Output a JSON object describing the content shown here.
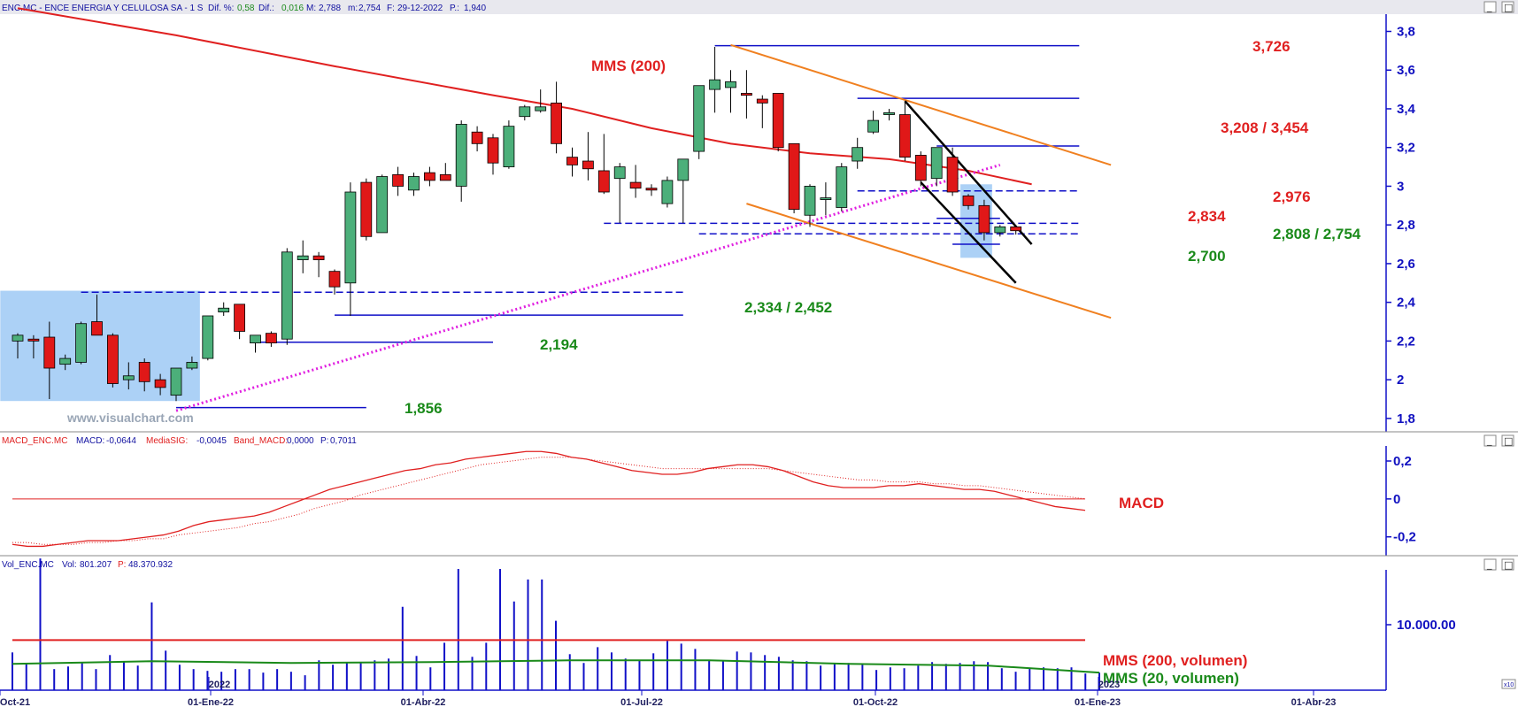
{
  "panels": {
    "price_header": {
      "text": "ENC.MC - ENCE ENERGIA Y CELULOSA SA - 1 S Dif. %: 0,58 Dif.: 0,016 M: 2,788 m: 2,754 F: 29-12-2022 P.: 1,940",
      "prefix": "ENC.MC - ENCE ENERGIA Y CELULOSA SA -  1 S",
      "dif_pct_label": "Dif. %:",
      "dif_pct": "0,58",
      "dif_label": "Dif.:",
      "dif": "0,016",
      "max_label": "M:",
      "max": "2,788",
      "min_label": "m:",
      "min": "2,754",
      "date_label": "F:",
      "date": "29-12-2022",
      "p_label": "P.:",
      "p": "1,940"
    },
    "macd_header": {
      "prefix": "MACD_ENC.MC",
      "macd_label": "MACD:",
      "macd": "-0,0644",
      "sig_label": "MediaSIG:",
      "sig": "-0,0045",
      "band_label": "Band_MACD:",
      "band": "0,0000",
      "p_label": "P:",
      "p": "0,7011"
    },
    "vol_header": {
      "prefix": "Vol_ENC.MC",
      "vol_label": "Vol:",
      "vol": "801.207",
      "p_label": "P:",
      "p": "48.370.932"
    }
  },
  "watermark": "www.visualchart.com",
  "window_buttons": {
    "minimize": "_",
    "maximize": "□"
  },
  "scale_corner": "x10",
  "colors": {
    "up": "#4caf7a",
    "down": "#e01818",
    "mms200": "#e02020",
    "mms20vol": "#1a8a1a",
    "blue": "#1010c8",
    "orange": "#f08020",
    "magenta": "#e020e0",
    "green_text": "#1a8a1a",
    "red_text": "#e02020"
  },
  "chart_data": [
    {
      "type": "candlestick",
      "title": "ENC.MC - ENCE ENERGIA Y CELULOSA SA",
      "timeframe": "1 S",
      "y_axis": {
        "ticks": [
          "1,8",
          "2",
          "2,2",
          "2,4",
          "2,6",
          "2,8",
          "3",
          "3,2",
          "3,4",
          "3,6",
          "3,8"
        ],
        "ylim": [
          1.74,
          3.88
        ]
      },
      "x_axis": {
        "ticks": [
          "01-Oct-21",
          "01-Ene-22",
          "01-Abr-22",
          "01-Jul-22",
          "01-Oct-22",
          "01-Ene-23",
          "01-Abr-23"
        ],
        "year_markers": [
          "2022",
          "2023"
        ]
      },
      "candles": [
        {
          "w": 0,
          "o": 2.2,
          "h": 2.24,
          "l": 2.11,
          "c": 2.23
        },
        {
          "w": 1,
          "o": 2.21,
          "h": 2.23,
          "l": 2.11,
          "c": 2.2
        },
        {
          "w": 2,
          "o": 2.22,
          "h": 2.3,
          "l": 1.9,
          "c": 2.06
        },
        {
          "w": 3,
          "o": 2.08,
          "h": 2.13,
          "l": 2.05,
          "c": 2.11
        },
        {
          "w": 4,
          "o": 2.09,
          "h": 2.3,
          "l": 2.08,
          "c": 2.29
        },
        {
          "w": 5,
          "o": 2.3,
          "h": 2.44,
          "l": 2.23,
          "c": 2.23
        },
        {
          "w": 6,
          "o": 2.23,
          "h": 2.24,
          "l": 1.96,
          "c": 1.98
        },
        {
          "w": 7,
          "o": 2.0,
          "h": 2.09,
          "l": 1.95,
          "c": 2.02
        },
        {
          "w": 8,
          "o": 2.09,
          "h": 2.11,
          "l": 1.94,
          "c": 1.99
        },
        {
          "w": 9,
          "o": 2.0,
          "h": 2.03,
          "l": 1.92,
          "c": 1.96
        },
        {
          "w": 10,
          "o": 1.92,
          "h": 2.06,
          "l": 1.89,
          "c": 2.06
        },
        {
          "w": 11,
          "o": 2.06,
          "h": 2.12,
          "l": 2.05,
          "c": 2.09
        },
        {
          "w": 12,
          "o": 2.11,
          "h": 2.33,
          "l": 2.1,
          "c": 2.33
        },
        {
          "w": 13,
          "o": 2.35,
          "h": 2.4,
          "l": 2.33,
          "c": 2.37
        },
        {
          "w": 14,
          "o": 2.39,
          "h": 2.39,
          "l": 2.21,
          "c": 2.25
        },
        {
          "w": 15,
          "o": 2.19,
          "h": 2.22,
          "l": 2.14,
          "c": 2.23
        },
        {
          "w": 16,
          "o": 2.24,
          "h": 2.25,
          "l": 2.17,
          "c": 2.19
        },
        {
          "w": 17,
          "o": 2.21,
          "h": 2.68,
          "l": 2.18,
          "c": 2.66
        },
        {
          "w": 18,
          "o": 2.62,
          "h": 2.72,
          "l": 2.55,
          "c": 2.64
        },
        {
          "w": 19,
          "o": 2.64,
          "h": 2.66,
          "l": 2.53,
          "c": 2.62
        },
        {
          "w": 20,
          "o": 2.56,
          "h": 2.57,
          "l": 2.44,
          "c": 2.48
        },
        {
          "w": 21,
          "o": 2.5,
          "h": 3.02,
          "l": 2.33,
          "c": 2.97
        },
        {
          "w": 22,
          "o": 3.02,
          "h": 3.04,
          "l": 2.72,
          "c": 2.74
        },
        {
          "w": 23,
          "o": 2.76,
          "h": 3.06,
          "l": 2.76,
          "c": 3.05
        },
        {
          "w": 24,
          "o": 3.06,
          "h": 3.1,
          "l": 2.95,
          "c": 3.0
        },
        {
          "w": 25,
          "o": 2.98,
          "h": 3.07,
          "l": 2.95,
          "c": 3.05
        },
        {
          "w": 26,
          "o": 3.07,
          "h": 3.1,
          "l": 3.0,
          "c": 3.03
        },
        {
          "w": 27,
          "o": 3.06,
          "h": 3.12,
          "l": 3.04,
          "c": 3.03
        },
        {
          "w": 28,
          "o": 3.0,
          "h": 3.34,
          "l": 2.92,
          "c": 3.32
        },
        {
          "w": 29,
          "o": 3.28,
          "h": 3.31,
          "l": 3.18,
          "c": 3.22
        },
        {
          "w": 30,
          "o": 3.25,
          "h": 3.27,
          "l": 3.06,
          "c": 3.12
        },
        {
          "w": 31,
          "o": 3.1,
          "h": 3.34,
          "l": 3.09,
          "c": 3.31
        },
        {
          "w": 32,
          "o": 3.36,
          "h": 3.42,
          "l": 3.34,
          "c": 3.41
        },
        {
          "w": 33,
          "o": 3.39,
          "h": 3.5,
          "l": 3.38,
          "c": 3.41
        },
        {
          "w": 34,
          "o": 3.43,
          "h": 3.54,
          "l": 3.17,
          "c": 3.22
        },
        {
          "w": 35,
          "o": 3.15,
          "h": 3.2,
          "l": 3.05,
          "c": 3.11
        },
        {
          "w": 36,
          "o": 3.13,
          "h": 3.28,
          "l": 3.03,
          "c": 3.09
        },
        {
          "w": 37,
          "o": 3.08,
          "h": 3.27,
          "l": 2.96,
          "c": 2.97
        },
        {
          "w": 38,
          "o": 3.04,
          "h": 3.12,
          "l": 2.81,
          "c": 3.1
        },
        {
          "w": 39,
          "o": 3.02,
          "h": 3.11,
          "l": 2.94,
          "c": 2.99
        },
        {
          "w": 40,
          "o": 2.99,
          "h": 3.01,
          "l": 2.95,
          "c": 2.98
        },
        {
          "w": 41,
          "o": 2.91,
          "h": 3.05,
          "l": 2.89,
          "c": 3.03
        },
        {
          "w": 42,
          "o": 3.03,
          "h": 3.13,
          "l": 2.81,
          "c": 3.14
        },
        {
          "w": 43,
          "o": 3.18,
          "h": 3.5,
          "l": 3.14,
          "c": 3.52
        },
        {
          "w": 44,
          "o": 3.5,
          "h": 3.72,
          "l": 3.38,
          "c": 3.55
        },
        {
          "w": 45,
          "o": 3.51,
          "h": 3.6,
          "l": 3.38,
          "c": 3.54
        },
        {
          "w": 46,
          "o": 3.48,
          "h": 3.6,
          "l": 3.35,
          "c": 3.47
        },
        {
          "w": 47,
          "o": 3.45,
          "h": 3.47,
          "l": 3.3,
          "c": 3.43
        },
        {
          "w": 48,
          "o": 3.48,
          "h": 3.48,
          "l": 3.18,
          "c": 3.2
        },
        {
          "w": 49,
          "o": 3.22,
          "h": 3.22,
          "l": 2.86,
          "c": 2.88
        },
        {
          "w": 50,
          "o": 2.85,
          "h": 3.01,
          "l": 2.79,
          "c": 3.0
        },
        {
          "w": 51,
          "o": 2.94,
          "h": 3.02,
          "l": 2.85,
          "c": 2.94
        },
        {
          "w": 52,
          "o": 2.89,
          "h": 3.12,
          "l": 2.87,
          "c": 3.1
        },
        {
          "w": 53,
          "o": 3.13,
          "h": 3.25,
          "l": 3.09,
          "c": 3.2
        },
        {
          "w": 54,
          "o": 3.28,
          "h": 3.39,
          "l": 3.27,
          "c": 3.34
        },
        {
          "w": 55,
          "o": 3.37,
          "h": 3.4,
          "l": 3.34,
          "c": 3.38
        },
        {
          "w": 56,
          "o": 3.37,
          "h": 3.44,
          "l": 3.13,
          "c": 3.15
        },
        {
          "w": 57,
          "o": 3.16,
          "h": 3.18,
          "l": 3.0,
          "c": 3.03
        },
        {
          "w": 58,
          "o": 3.04,
          "h": 3.2,
          "l": 3.0,
          "c": 3.2
        },
        {
          "w": 59,
          "o": 3.15,
          "h": 3.2,
          "l": 2.95,
          "c": 2.97
        },
        {
          "w": 60,
          "o": 2.95,
          "h": 2.96,
          "l": 2.88,
          "c": 2.9
        },
        {
          "w": 61,
          "o": 2.9,
          "h": 2.93,
          "l": 2.72,
          "c": 2.76
        },
        {
          "w": 62,
          "o": 2.76,
          "h": 2.8,
          "l": 2.74,
          "c": 2.79
        },
        {
          "w": 63,
          "o": 2.79,
          "h": 2.79,
          "l": 2.75,
          "c": 2.77
        }
      ],
      "overlays": {
        "mms200": {
          "name": "MMS (200)",
          "points": [
            [
              0,
              3.92
            ],
            [
              10,
              3.78
            ],
            [
              20,
              3.62
            ],
            [
              30,
              3.47
            ],
            [
              35,
              3.4
            ],
            [
              40,
              3.3
            ],
            [
              45,
              3.22
            ],
            [
              50,
              3.17
            ],
            [
              55,
              3.14
            ],
            [
              60,
              3.08
            ],
            [
              64,
              3.01
            ]
          ]
        },
        "support_trend": {
          "points": [
            [
              10,
              1.84
            ],
            [
              62,
              3.11
            ]
          ]
        },
        "channel_upper": {
          "points": [
            [
              45,
              3.73
            ],
            [
              69,
              3.11
            ]
          ]
        },
        "channel_lower": {
          "points": [
            [
              46,
              2.91
            ],
            [
              69,
              2.32
            ]
          ]
        },
        "wedge_upper": {
          "points": [
            [
              56,
              3.44
            ],
            [
              64,
              2.7
            ]
          ]
        },
        "wedge_lower": {
          "points": [
            [
              57,
              3.02
            ],
            [
              63,
              2.5
            ]
          ]
        },
        "shaded_boxes": [
          {
            "x": [
              -1.1,
              11.5
            ],
            "y": [
              1.89,
              2.46
            ]
          },
          {
            "x": [
              59.5,
              61.5
            ],
            "y": [
              2.63,
              3.01
            ]
          }
        ],
        "levels": [
          {
            "value": 3.726,
            "x": [
              44,
              67
            ],
            "style": "solid"
          },
          {
            "value": 3.454,
            "x": [
              53,
              67
            ],
            "style": "solid"
          },
          {
            "value": 3.208,
            "x": [
              58,
              67
            ],
            "style": "solid"
          },
          {
            "value": 2.976,
            "x": [
              53,
              67
            ],
            "style": "dashed"
          },
          {
            "value": 2.834,
            "x": [
              58,
              62
            ],
            "style": "solid"
          },
          {
            "value": 2.808,
            "x": [
              37,
              67
            ],
            "style": "dashed"
          },
          {
            "value": 2.754,
            "x": [
              43,
              67
            ],
            "style": "dashed"
          },
          {
            "value": 2.7,
            "x": [
              59,
              62
            ],
            "style": "solid"
          },
          {
            "value": 2.452,
            "x": [
              4,
              42
            ],
            "style": "dashed"
          },
          {
            "value": 2.334,
            "x": [
              20,
              42
            ],
            "style": "solid"
          },
          {
            "value": 2.194,
            "x": [
              15,
              30
            ],
            "style": "solid"
          },
          {
            "value": 1.856,
            "x": [
              10,
              22
            ],
            "style": "solid"
          }
        ]
      },
      "annotations": [
        {
          "text": "MMS (200)",
          "color": "red"
        },
        {
          "text": "3,726",
          "color": "red"
        },
        {
          "text": "3,208 / 3,454",
          "color": "red"
        },
        {
          "text": "2,976",
          "color": "red"
        },
        {
          "text": "2,834",
          "color": "red"
        },
        {
          "text": "2,808 / 2,754",
          "color": "green"
        },
        {
          "text": "2,700",
          "color": "green"
        },
        {
          "text": "2,334 / 2,452",
          "color": "green"
        },
        {
          "text": "2,194",
          "color": "green"
        },
        {
          "text": "1,856",
          "color": "green"
        }
      ]
    },
    {
      "type": "line",
      "title": "MACD_ENC.MC",
      "y_axis": {
        "ticks": [
          "0,2",
          "0",
          "-0,2"
        ],
        "ylim": [
          -0.29,
          0.27
        ]
      },
      "series": [
        {
          "name": "MACD",
          "values": [
            -0.24,
            -0.25,
            -0.25,
            -0.24,
            -0.23,
            -0.22,
            -0.22,
            -0.22,
            -0.21,
            -0.2,
            -0.19,
            -0.17,
            -0.14,
            -0.12,
            -0.11,
            -0.1,
            -0.09,
            -0.07,
            -0.04,
            -0.01,
            0.02,
            0.05,
            0.07,
            0.09,
            0.11,
            0.13,
            0.15,
            0.16,
            0.18,
            0.19,
            0.21,
            0.22,
            0.23,
            0.24,
            0.25,
            0.25,
            0.24,
            0.22,
            0.21,
            0.19,
            0.17,
            0.15,
            0.14,
            0.13,
            0.13,
            0.14,
            0.16,
            0.17,
            0.18,
            0.18,
            0.17,
            0.15,
            0.12,
            0.09,
            0.07,
            0.06,
            0.06,
            0.06,
            0.07,
            0.07,
            0.08,
            0.07,
            0.06,
            0.05,
            0.05,
            0.04,
            0.02,
            0.0,
            -0.02,
            -0.04,
            -0.05,
            -0.06
          ]
        },
        {
          "name": "MediaSIG",
          "values": [
            -0.23,
            -0.23,
            -0.24,
            -0.24,
            -0.24,
            -0.23,
            -0.23,
            -0.22,
            -0.22,
            -0.21,
            -0.21,
            -0.19,
            -0.18,
            -0.17,
            -0.16,
            -0.15,
            -0.13,
            -0.12,
            -0.1,
            -0.08,
            -0.05,
            -0.03,
            -0.01,
            0.02,
            0.04,
            0.06,
            0.08,
            0.1,
            0.12,
            0.14,
            0.16,
            0.18,
            0.19,
            0.2,
            0.21,
            0.22,
            0.22,
            0.22,
            0.21,
            0.2,
            0.19,
            0.18,
            0.17,
            0.16,
            0.16,
            0.16,
            0.16,
            0.16,
            0.16,
            0.16,
            0.16,
            0.15,
            0.14,
            0.13,
            0.12,
            0.11,
            0.1,
            0.1,
            0.09,
            0.09,
            0.09,
            0.08,
            0.08,
            0.07,
            0.07,
            0.06,
            0.05,
            0.04,
            0.03,
            0.02,
            0.01,
            0.0
          ]
        }
      ],
      "zero_line": 0,
      "label": "MACD"
    },
    {
      "type": "bar",
      "title": "Vol_ENC.MC",
      "y_axis": {
        "ticks": [
          "10.000.00"
        ],
        "scale": "x10",
        "ylim": [
          0,
          1350000
        ]
      },
      "volumes": [
        430000,
        300000,
        1500000,
        240000,
        270000,
        320000,
        240000,
        400000,
        320000,
        280000,
        1000000,
        450000,
        290000,
        240000,
        220000,
        210000,
        240000,
        240000,
        200000,
        240000,
        210000,
        170000,
        340000,
        290000,
        310000,
        320000,
        340000,
        360000,
        950000,
        390000,
        260000,
        540000,
        1380000,
        380000,
        540000,
        1380000,
        1010000,
        1260000,
        1260000,
        790000,
        410000,
        310000,
        490000,
        430000,
        360000,
        340000,
        420000,
        560000,
        530000,
        470000,
        340000,
        330000,
        440000,
        430000,
        400000,
        380000,
        340000,
        330000,
        280000,
        300000,
        310000,
        290000,
        230000,
        260000,
        250000,
        280000,
        320000,
        300000,
        310000,
        330000,
        320000,
        250000,
        210000,
        250000,
        260000,
        250000,
        260000,
        190000,
        200000
      ],
      "series": [
        {
          "name": "MMS (200, volumen)",
          "level": 570000
        },
        {
          "name": "MMS (20, volumen)",
          "values_x": [
            0,
            10,
            20,
            30,
            40,
            50,
            60,
            70,
            78
          ],
          "values": [
            300000,
            330000,
            310000,
            320000,
            340000,
            340000,
            300000,
            280000,
            200000
          ]
        }
      ]
    }
  ]
}
